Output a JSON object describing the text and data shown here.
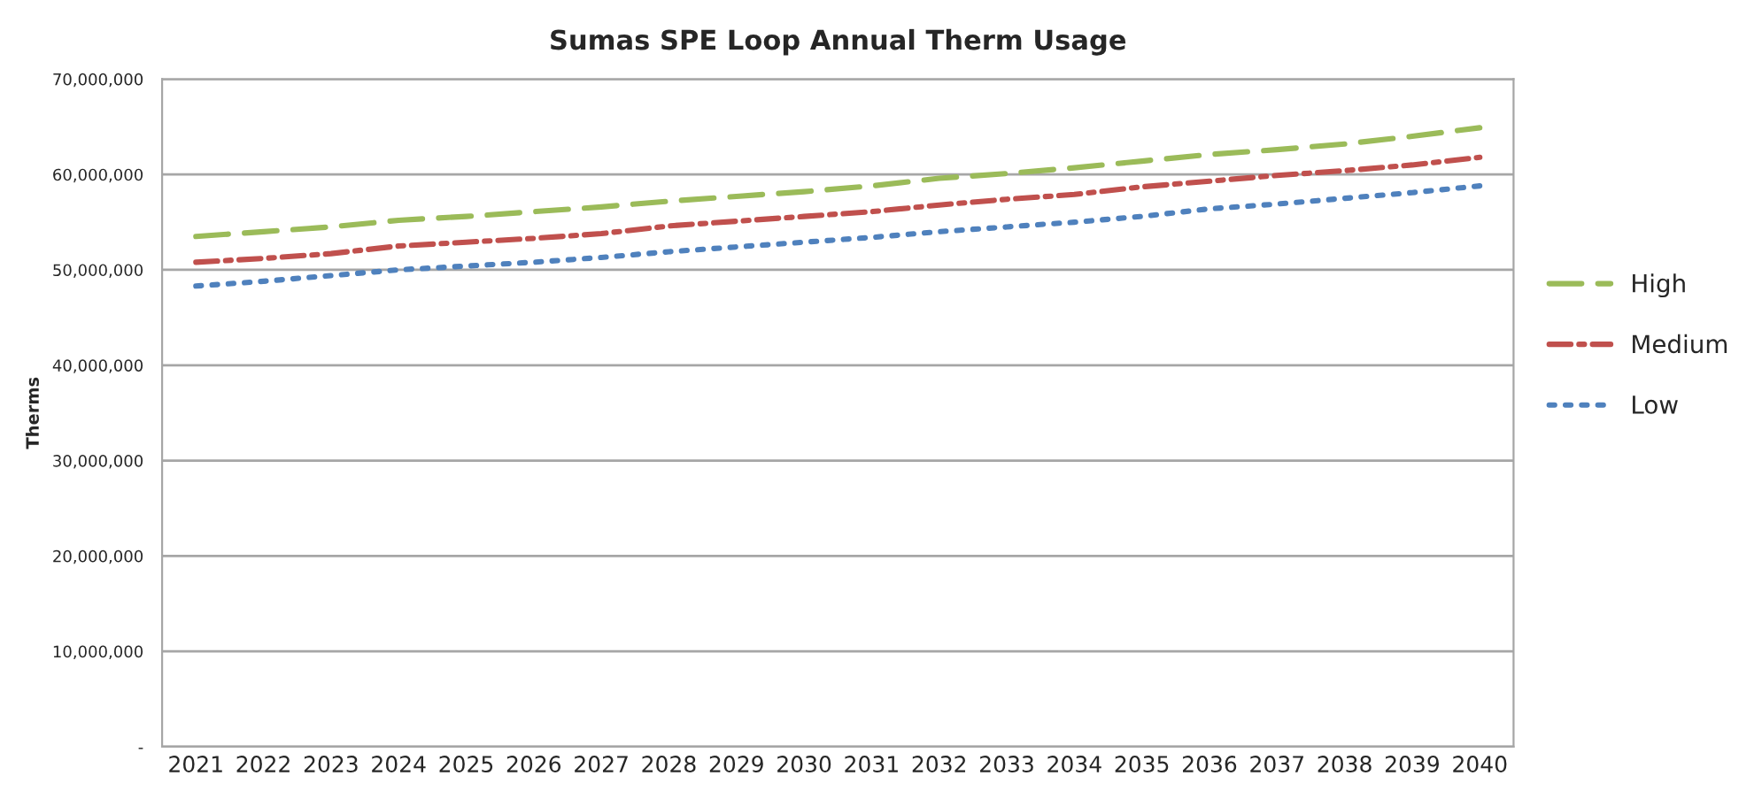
{
  "chart_data": {
    "type": "line",
    "title": "Sumas SPE Loop Annual Therm Usage",
    "ylabel": "Therms",
    "categories": [
      "2021",
      "2022",
      "2023",
      "2024",
      "2025",
      "2026",
      "2027",
      "2028",
      "2029",
      "2030",
      "2031",
      "2032",
      "2033",
      "2034",
      "2035",
      "2036",
      "2037",
      "2038",
      "2039",
      "2040"
    ],
    "series": [
      {
        "name": "High",
        "color": "#9bbb59",
        "line_style": "dashed",
        "values": [
          53500000,
          54000000,
          54500000,
          55200000,
          55600000,
          56100000,
          56600000,
          57200000,
          57700000,
          58200000,
          58800000,
          59600000,
          60100000,
          60700000,
          61400000,
          62100000,
          62600000,
          63200000,
          64000000,
          64900000
        ]
      },
      {
        "name": "Medium",
        "color": "#c0504d",
        "line_style": "dashdot",
        "values": [
          50800000,
          51200000,
          51700000,
          52500000,
          52900000,
          53300000,
          53800000,
          54600000,
          55100000,
          55600000,
          56100000,
          56800000,
          57400000,
          57900000,
          58700000,
          59300000,
          59900000,
          60400000,
          61000000,
          61800000
        ]
      },
      {
        "name": "Low",
        "color": "#4f81bd",
        "line_style": "dotted",
        "values": [
          48300000,
          48800000,
          49400000,
          50000000,
          50400000,
          50800000,
          51300000,
          51900000,
          52400000,
          52900000,
          53400000,
          54000000,
          54500000,
          55000000,
          55600000,
          56400000,
          56900000,
          57500000,
          58100000,
          58800000
        ]
      }
    ],
    "ylim": [
      0,
      70000000
    ],
    "yticks": [
      {
        "value": 0,
        "label": "-"
      },
      {
        "value": 10000000,
        "label": "10,000,000"
      },
      {
        "value": 20000000,
        "label": "20,000,000"
      },
      {
        "value": 30000000,
        "label": "30,000,000"
      },
      {
        "value": 40000000,
        "label": "40,000,000"
      },
      {
        "value": 50000000,
        "label": "50,000,000"
      },
      {
        "value": 60000000,
        "label": "60,000,000"
      },
      {
        "value": 70000000,
        "label": "70,000,000"
      }
    ],
    "grid": "y",
    "legend": "right",
    "marker": "none"
  }
}
